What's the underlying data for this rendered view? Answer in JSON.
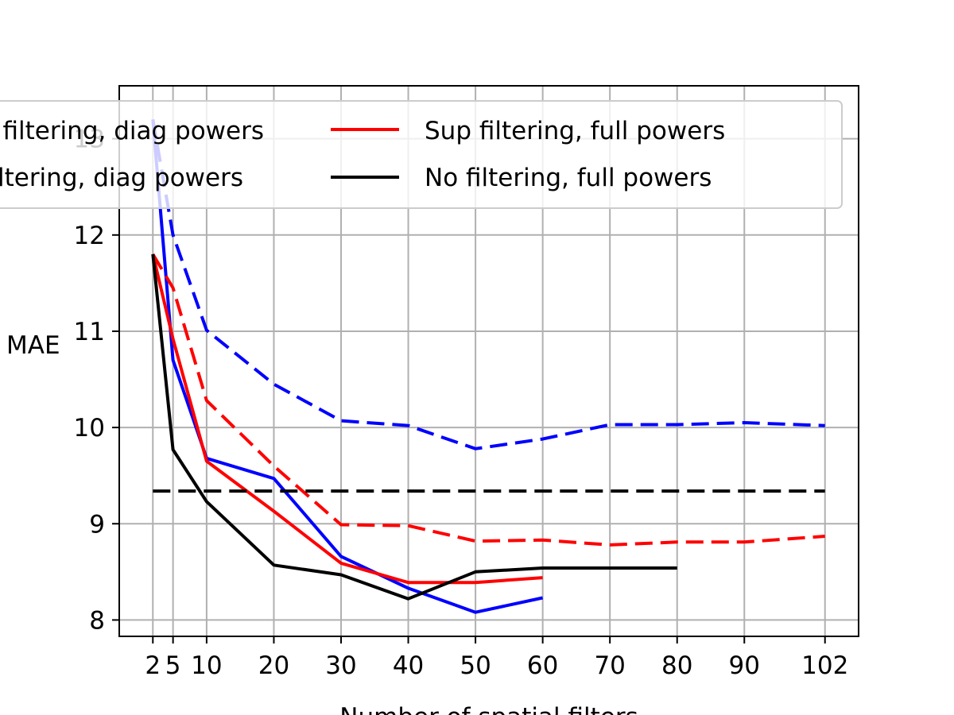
{
  "chart_data": {
    "type": "line",
    "title": "",
    "xlabel": "Number of spatial filters",
    "ylabel": "MAE",
    "x_ticks": [
      2,
      5,
      10,
      20,
      30,
      40,
      50,
      60,
      70,
      80,
      90,
      102
    ],
    "x_tick_labels": [
      "2",
      "5",
      "10",
      "20",
      "30",
      "40",
      "50",
      "60",
      "70",
      "80",
      "90",
      "102"
    ],
    "y_ticks": [
      8,
      9,
      10,
      11,
      12,
      13
    ],
    "y_tick_labels": [
      "8",
      "9",
      "10",
      "11",
      "12",
      "13"
    ],
    "xlim": [
      -3,
      107
    ],
    "ylim": [
      7.83,
      13.55
    ],
    "grid": true,
    "legend_position": "top",
    "legend": [
      "No filtering, full powers",
      "Sup filtering, full powers",
      "No filtering, diag powers",
      "Sup filtering, diag powers"
    ],
    "series": [
      {
        "color": "#0000ff",
        "linestyle": "solid",
        "x": [
          2,
          5,
          10,
          20,
          30,
          40,
          50,
          60
        ],
        "y": [
          13.2,
          10.7,
          9.68,
          9.47,
          8.66,
          8.33,
          8.08,
          8.23
        ]
      },
      {
        "color": "#0000ff",
        "linestyle": "dashed",
        "x": [
          2,
          5,
          10,
          20,
          30,
          40,
          50,
          60,
          70,
          80,
          90,
          102
        ],
        "y": [
          13.2,
          12.0,
          11.01,
          10.45,
          10.07,
          10.02,
          9.78,
          9.88,
          10.03,
          10.03,
          10.05,
          10.02
        ]
      },
      {
        "name": "Sup filtering, full powers",
        "color": "#ff0000",
        "linestyle": "solid",
        "x": [
          2,
          5,
          10,
          20,
          30,
          40,
          50,
          60
        ],
        "y": [
          11.8,
          10.92,
          9.65,
          9.13,
          8.59,
          8.39,
          8.39,
          8.44
        ]
      },
      {
        "color": "#ff0000",
        "linestyle": "dashed",
        "x": [
          2,
          5,
          10,
          20,
          30,
          40,
          50,
          60,
          70,
          80,
          90,
          102
        ],
        "y": [
          11.8,
          11.45,
          10.28,
          9.6,
          8.99,
          8.98,
          8.82,
          8.83,
          8.78,
          8.81,
          8.81,
          8.87
        ]
      },
      {
        "name": "No filtering, full powers",
        "color": "#000000",
        "linestyle": "solid",
        "x": [
          2,
          5,
          10,
          20,
          30,
          40,
          50,
          60,
          70,
          80
        ],
        "y": [
          11.8,
          9.77,
          9.23,
          8.57,
          8.47,
          8.22,
          8.5,
          8.54,
          8.54,
          8.54
        ]
      },
      {
        "color": "#000000",
        "linestyle": "dashed",
        "x": [
          2,
          102
        ],
        "y": [
          9.34,
          9.34
        ]
      }
    ]
  }
}
